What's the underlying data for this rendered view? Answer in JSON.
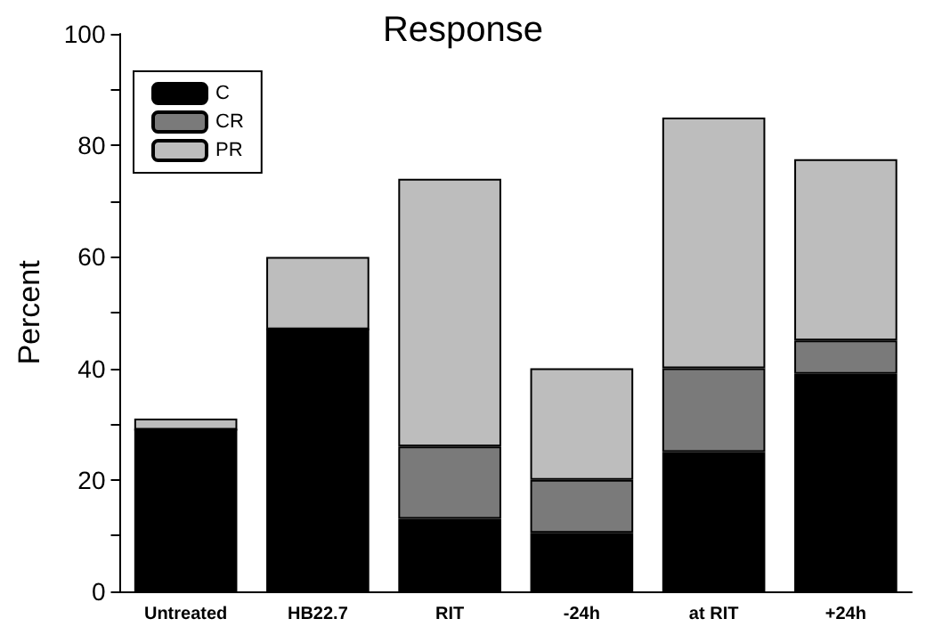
{
  "chart_data": {
    "type": "bar",
    "title": "Response",
    "ylabel": "Percent",
    "stacked": true,
    "categories": [
      "Untreated",
      "HB22.7",
      "RIT",
      "-24h",
      "at RIT",
      "+24h"
    ],
    "series": [
      {
        "name": "C",
        "color": "#000000",
        "values": [
          29,
          47,
          13,
          10.5,
          25,
          39
        ]
      },
      {
        "name": "CR",
        "color": "#7a7a7a",
        "values": [
          0,
          0,
          13,
          9.5,
          15,
          6
        ]
      },
      {
        "name": "PR",
        "color": "#bdbdbd",
        "values": [
          2,
          13,
          48,
          20,
          45,
          32.5
        ]
      }
    ],
    "ylim": [
      0,
      100
    ],
    "yticks": [
      0,
      {
        "value": 10,
        "label": null
      },
      20,
      {
        "value": 30,
        "label": null
      },
      40,
      {
        "value": 50,
        "label": null
      },
      60,
      {
        "value": 70,
        "label": null
      },
      80,
      {
        "value": 90,
        "label": null
      },
      100
    ],
    "grid": false,
    "legend": "top left"
  }
}
